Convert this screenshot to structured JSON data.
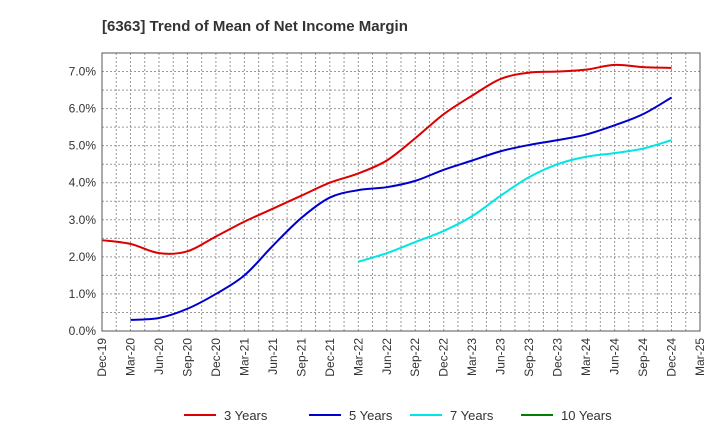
{
  "chart_data": {
    "type": "line",
    "title": "[6363]  Trend of Mean of Net Income Margin",
    "xlabel": "",
    "ylabel": "",
    "ylim": [
      0,
      7.5
    ],
    "y_ticks": [
      0,
      1,
      2,
      3,
      4,
      5,
      6,
      7
    ],
    "y_tick_labels": [
      "0.0%",
      "1.0%",
      "2.0%",
      "3.0%",
      "4.0%",
      "5.0%",
      "6.0%",
      "7.0%"
    ],
    "x_tick_labels": [
      "Dec-19",
      "Mar-20",
      "Jun-20",
      "Sep-20",
      "Dec-20",
      "Mar-21",
      "Jun-21",
      "Sep-21",
      "Dec-21",
      "Mar-22",
      "Jun-22",
      "Sep-22",
      "Dec-22",
      "Mar-23",
      "Jun-23",
      "Sep-23",
      "Dec-23",
      "Mar-24",
      "Jun-24",
      "Sep-24",
      "Dec-24",
      "Mar-25"
    ],
    "x": [
      "Dec-19",
      "Mar-20",
      "Jun-20",
      "Sep-20",
      "Dec-20",
      "Mar-21",
      "Jun-21",
      "Sep-21",
      "Dec-21",
      "Mar-22",
      "Jun-22",
      "Sep-22",
      "Dec-22",
      "Mar-23",
      "Jun-23",
      "Sep-23",
      "Dec-23",
      "Mar-24",
      "Jun-24",
      "Sep-24",
      "Dec-24"
    ],
    "grid": true,
    "legend_position": "bottom",
    "series": [
      {
        "name": "3 Years",
        "color": "#dd0000",
        "values": [
          2.45,
          2.35,
          2.1,
          2.15,
          2.55,
          2.95,
          3.3,
          3.65,
          4.0,
          4.25,
          4.6,
          5.2,
          5.85,
          6.35,
          6.8,
          6.97,
          7.0,
          7.05,
          7.18,
          7.12,
          7.1
        ]
      },
      {
        "name": "5 Years",
        "color": "#0000cc",
        "values": [
          null,
          0.3,
          0.35,
          0.6,
          1.0,
          1.5,
          2.3,
          3.05,
          3.6,
          3.8,
          3.88,
          4.05,
          4.35,
          4.6,
          4.85,
          5.02,
          5.15,
          5.3,
          5.55,
          5.85,
          6.3
        ]
      },
      {
        "name": "7 Years",
        "color": "#00e5e5",
        "values": [
          null,
          null,
          null,
          null,
          null,
          null,
          null,
          null,
          null,
          1.87,
          2.1,
          2.4,
          2.7,
          3.1,
          3.65,
          4.15,
          4.5,
          4.7,
          4.8,
          4.92,
          5.15
        ]
      },
      {
        "name": "10 Years",
        "color": "#008000",
        "values": [
          null,
          null,
          null,
          null,
          null,
          null,
          null,
          null,
          null,
          null,
          null,
          null,
          null,
          null,
          null,
          null,
          null,
          null,
          null,
          null,
          null
        ]
      }
    ]
  }
}
